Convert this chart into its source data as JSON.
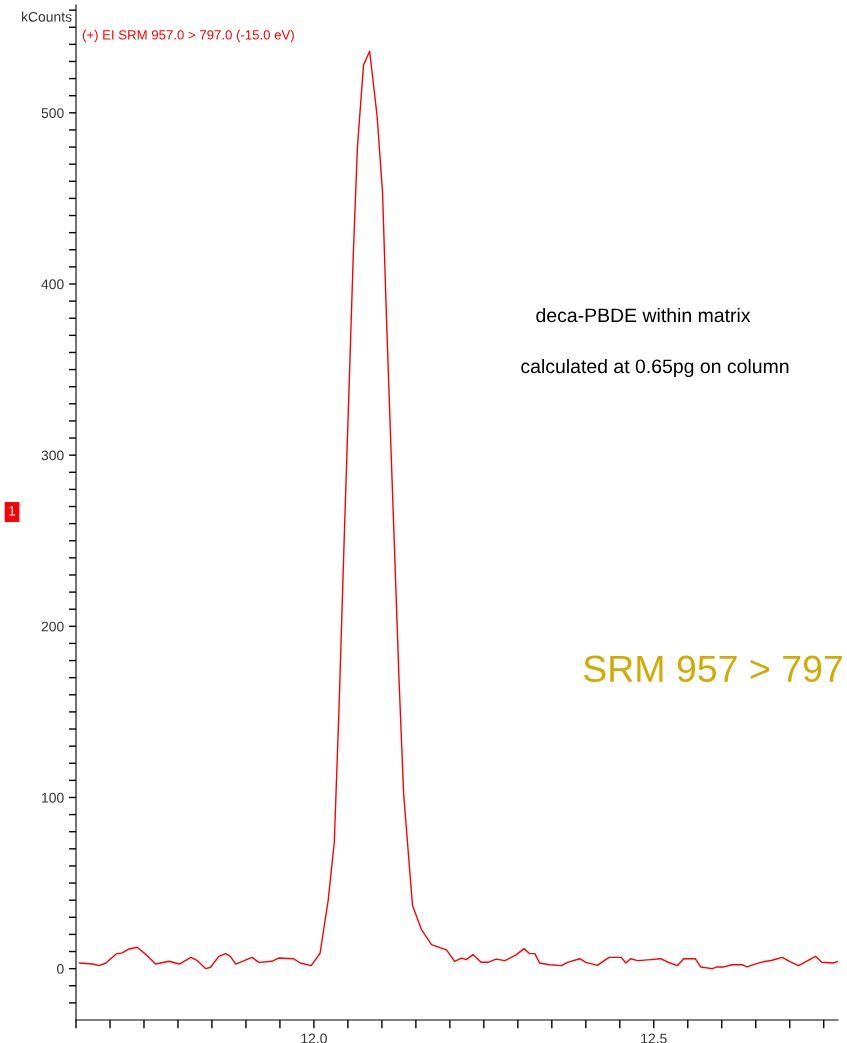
{
  "chart_data": {
    "type": "line",
    "ylabel": "kCounts",
    "annotations": [
      "(+) EI SRM 957.0 > 797.0 (-15.0 eV)",
      "deca-PBDE within matrix",
      "calculated at 0.65pg on column",
      "SRM 957 > 797",
      "1"
    ],
    "series": [
      {
        "color": "#ff0000",
        "x": [
          11.655,
          11.675,
          11.684,
          11.694,
          11.709,
          11.718,
          11.728,
          11.74,
          11.753,
          11.767,
          11.787,
          11.802,
          11.819,
          11.828,
          11.841,
          11.848,
          11.86,
          11.87,
          11.877,
          11.885,
          11.909,
          11.919,
          11.938,
          11.948,
          11.97,
          11.98,
          11.996,
          12.009,
          12.021,
          12.03,
          12.037,
          12.045,
          12.052,
          12.058,
          12.064,
          12.073,
          12.082,
          12.093,
          12.101,
          12.107,
          12.113,
          12.119,
          12.125,
          12.132,
          12.145,
          12.158,
          12.173,
          12.195,
          12.207,
          12.217,
          12.224,
          12.234,
          12.246,
          12.256,
          12.268,
          12.281,
          12.298,
          12.309,
          12.317,
          12.325,
          12.332,
          12.347,
          12.364,
          12.373,
          12.391,
          12.4,
          12.417,
          12.434,
          12.452,
          12.459,
          12.466,
          12.476,
          12.496,
          12.51,
          12.52,
          12.535,
          12.544,
          12.561,
          12.569,
          12.586,
          12.593,
          12.603,
          12.615,
          12.63,
          12.637,
          12.657,
          12.674,
          12.689,
          12.701,
          12.713,
          12.738,
          12.747,
          12.764,
          12.771
        ],
        "values": [
          3.3,
          2.7,
          1.8,
          3.3,
          8.6,
          9.2,
          11.5,
          12.5,
          8.2,
          2.7,
          4.3,
          2.7,
          6.6,
          4.9,
          0,
          0.8,
          7.2,
          8.8,
          7.2,
          2.7,
          6.6,
          3.7,
          4.3,
          6.2,
          5.8,
          3.3,
          1.8,
          9,
          40,
          74,
          153,
          257,
          343,
          418,
          480,
          528,
          536,
          498,
          453,
          377,
          308,
          240,
          171,
          102,
          37,
          23,
          14,
          11,
          4.3,
          6.2,
          5.3,
          8.2,
          3.7,
          3.7,
          5.6,
          4.7,
          8.2,
          11.7,
          8.8,
          8.8,
          3.3,
          2.3,
          1.8,
          3.7,
          5.8,
          3.7,
          1.9,
          6.6,
          6.6,
          3.3,
          5.8,
          4.7,
          5.3,
          5.8,
          3.9,
          1.8,
          5.8,
          5.8,
          1.0,
          0,
          1.0,
          1.0,
          2.3,
          2.3,
          1.0,
          3.7,
          4.9,
          6.6,
          3.9,
          1.8,
          7.2,
          3.7,
          3.3,
          4.3
        ]
      }
    ],
    "xlim": [
      11.65,
      12.771
    ],
    "ylim": [
      -30,
      563
    ],
    "xticks": [
      {
        "value": 11.65,
        "label": null
      },
      {
        "value": 11.7,
        "label": null
      },
      {
        "value": 11.75,
        "label": null
      },
      {
        "value": 11.8,
        "label": null
      },
      {
        "value": 11.85,
        "label": null
      },
      {
        "value": 11.9,
        "label": null
      },
      {
        "value": 11.95,
        "label": null
      },
      {
        "value": 12.0,
        "label": "12.0"
      },
      {
        "value": 12.05,
        "label": null
      },
      {
        "value": 12.1,
        "label": null
      },
      {
        "value": 12.15,
        "label": null
      },
      {
        "value": 12.2,
        "label": null
      },
      {
        "value": 12.25,
        "label": null
      },
      {
        "value": 12.3,
        "label": null
      },
      {
        "value": 12.35,
        "label": null
      },
      {
        "value": 12.4,
        "label": null
      },
      {
        "value": 12.45,
        "label": null
      },
      {
        "value": 12.5,
        "label": "12.5"
      },
      {
        "value": 12.55,
        "label": null
      },
      {
        "value": 12.6,
        "label": null
      },
      {
        "value": 12.65,
        "label": null
      },
      {
        "value": 12.7,
        "label": null
      },
      {
        "value": 12.75,
        "label": null
      }
    ],
    "yticks": [
      {
        "value": -20,
        "label": null
      },
      {
        "value": -10,
        "label": null
      },
      0,
      {
        "value": 10,
        "label": null
      },
      {
        "value": 20,
        "label": null
      },
      {
        "value": 30,
        "label": null
      },
      {
        "value": 40,
        "label": null
      },
      {
        "value": 50,
        "label": null
      },
      {
        "value": 60,
        "label": null
      },
      {
        "value": 70,
        "label": null
      },
      {
        "value": 80,
        "label": null
      },
      {
        "value": 90,
        "label": null
      },
      100,
      {
        "value": 110,
        "label": null
      },
      {
        "value": 120,
        "label": null
      },
      {
        "value": 130,
        "label": null
      },
      {
        "value": 140,
        "label": null
      },
      {
        "value": 150,
        "label": null
      },
      {
        "value": 160,
        "label": null
      },
      {
        "value": 170,
        "label": null
      },
      {
        "value": 180,
        "label": null
      },
      {
        "value": 190,
        "label": null
      },
      200,
      {
        "value": 210,
        "label": null
      },
      {
        "value": 220,
        "label": null
      },
      {
        "value": 230,
        "label": null
      },
      {
        "value": 240,
        "label": null
      },
      {
        "value": 250,
        "label": null
      },
      {
        "value": 260,
        "label": null
      },
      {
        "value": 270,
        "label": null
      },
      {
        "value": 280,
        "label": null
      },
      {
        "value": 290,
        "label": null
      },
      300,
      {
        "value": 310,
        "label": null
      },
      {
        "value": 320,
        "label": null
      },
      {
        "value": 330,
        "label": null
      },
      {
        "value": 340,
        "label": null
      },
      {
        "value": 350,
        "label": null
      },
      {
        "value": 360,
        "label": null
      },
      {
        "value": 370,
        "label": null
      },
      {
        "value": 380,
        "label": null
      },
      {
        "value": 390,
        "label": null
      },
      400,
      {
        "value": 410,
        "label": null
      },
      {
        "value": 420,
        "label": null
      },
      {
        "value": 430,
        "label": null
      },
      {
        "value": 440,
        "label": null
      },
      {
        "value": 450,
        "label": null
      },
      {
        "value": 460,
        "label": null
      },
      {
        "value": 470,
        "label": null
      },
      {
        "value": 480,
        "label": null
      },
      {
        "value": 490,
        "label": null
      },
      500,
      {
        "value": 510,
        "label": null
      },
      {
        "value": 520,
        "label": null
      },
      {
        "value": 530,
        "label": null
      },
      {
        "value": 540,
        "label": null
      },
      {
        "value": 550,
        "label": null
      },
      {
        "value": 560,
        "label": null
      }
    ],
    "grid": false,
    "legend": false
  }
}
